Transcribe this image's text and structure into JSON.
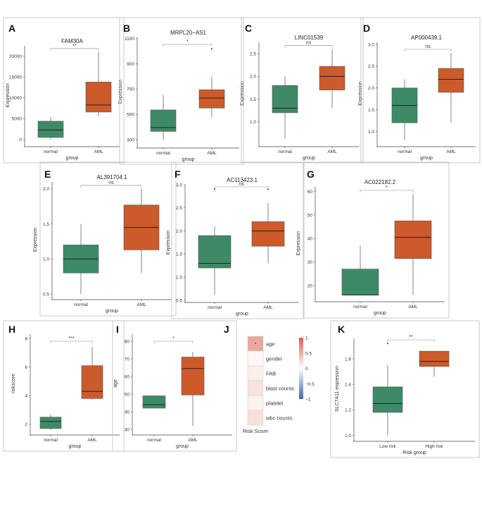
{
  "colors": {
    "normal": "#3f8a66",
    "aml": "#cc5a2a",
    "low_risk": "#3f8a66",
    "high_risk": "#cc5a2a"
  },
  "chart_data": [
    {
      "label": "A",
      "type": "box",
      "title": "FAM30A",
      "ylabel": "Expression",
      "xlabel": "group",
      "ylim": [
        -1200,
        22500
      ],
      "yticks": [
        0,
        5000,
        10000,
        15000,
        20000
      ],
      "tick_labels": [
        "0",
        "5000",
        "10000",
        "15000",
        "20000"
      ],
      "significance": "**",
      "categories": [
        "normal",
        "AML"
      ],
      "boxes": [
        {
          "name": "normal",
          "min": 0,
          "q1": 500,
          "median": 2300,
          "q3": 4400,
          "max": 5400,
          "outliers": []
        },
        {
          "name": "AML",
          "min": 5500,
          "q1": 6600,
          "median": 8300,
          "q3": 13800,
          "max": 21000,
          "outliers": []
        }
      ]
    },
    {
      "label": "B",
      "type": "box",
      "title": "MRPL20−AS1",
      "ylabel": "Expression",
      "xlabel": "group",
      "ylim": [
        250,
        1110
      ],
      "yticks": [
        300,
        500,
        700,
        900,
        1100
      ],
      "tick_labels": [
        "300",
        "500",
        "700",
        "900",
        "1100"
      ],
      "significance": "*",
      "categories": [
        "normal",
        "AML"
      ],
      "boxes": [
        {
          "name": "normal",
          "min": 300,
          "q1": 365,
          "median": 395,
          "q3": 535,
          "max": 655,
          "outliers": []
        },
        {
          "name": "AML",
          "min": 480,
          "q1": 550,
          "median": 630,
          "q3": 695,
          "max": 800,
          "outliers": [
            1020
          ]
        }
      ]
    },
    {
      "label": "C",
      "type": "box",
      "title": "LINC01539",
      "ylabel": "Expression",
      "xlabel": "group",
      "ylim": [
        0.5,
        2.75
      ],
      "yticks": [
        1.0,
        1.5,
        2.0,
        2.5
      ],
      "tick_labels": [
        "1.0",
        "1.5",
        "2.0",
        "2.5"
      ],
      "significance": "ns",
      "categories": [
        "normal",
        "AML"
      ],
      "boxes": [
        {
          "name": "normal",
          "min": 0.62,
          "q1": 1.2,
          "median": 1.3,
          "q3": 1.8,
          "max": 2.0,
          "outliers": []
        },
        {
          "name": "AML",
          "min": 1.3,
          "q1": 1.7,
          "median": 2.0,
          "q3": 2.22,
          "max": 2.6,
          "outliers": []
        }
      ]
    },
    {
      "label": "D",
      "type": "box",
      "title": "AP000439.1",
      "ylabel": "Expression",
      "xlabel": "group",
      "ylim": [
        0.7,
        3.05
      ],
      "yticks": [
        1.0,
        1.5,
        2.0,
        2.5,
        3.0
      ],
      "tick_labels": [
        "1.0",
        "1.5",
        "2.0",
        "2.5",
        "3.0"
      ],
      "significance": "ns",
      "categories": [
        "normal",
        "AML"
      ],
      "boxes": [
        {
          "name": "normal",
          "min": 0.8,
          "q1": 1.2,
          "median": 1.6,
          "q3": 2.0,
          "max": 2.2,
          "outliers": []
        },
        {
          "name": "AML",
          "min": 1.2,
          "q1": 1.9,
          "median": 2.2,
          "q3": 2.45,
          "max": 2.8,
          "outliers": []
        }
      ]
    },
    {
      "label": "E",
      "type": "box",
      "title": "AL391704.1",
      "ylabel": "Expression",
      "xlabel": "group",
      "ylim": [
        0.45,
        2.1
      ],
      "yticks": [
        0.5,
        1.0,
        1.5,
        2.0
      ],
      "tick_labels": [
        "0.5",
        "1.0",
        "1.5",
        "2.0"
      ],
      "significance": "ns",
      "categories": [
        "normal",
        "AML"
      ],
      "boxes": [
        {
          "name": "normal",
          "min": 0.5,
          "q1": 0.8,
          "median": 1.0,
          "q3": 1.2,
          "max": 1.5,
          "outliers": []
        },
        {
          "name": "AML",
          "min": 0.8,
          "q1": 1.13,
          "median": 1.45,
          "q3": 1.77,
          "max": 2.0,
          "outliers": []
        }
      ]
    },
    {
      "label": "F",
      "type": "box",
      "title": "AC113423.1",
      "ylabel": "Expression",
      "xlabel": "group",
      "ylim": [
        0.5,
        3.0
      ],
      "yticks": [
        0.5,
        1.0,
        1.5,
        2.0,
        2.5,
        3.0
      ],
      "tick_labels": [
        "0.5",
        "1.0",
        "1.5",
        "2.0",
        "2.5",
        "3.0"
      ],
      "significance": "ns",
      "categories": [
        "normal",
        "AML"
      ],
      "boxes": [
        {
          "name": "normal",
          "min": 0.62,
          "q1": 1.2,
          "median": 1.3,
          "q3": 1.9,
          "max": 2.1,
          "outliers": [
            2.9
          ]
        },
        {
          "name": "AML",
          "min": 1.3,
          "q1": 1.67,
          "median": 2.0,
          "q3": 2.2,
          "max": 2.6,
          "outliers": [
            2.9
          ]
        }
      ]
    },
    {
      "label": "G",
      "type": "box",
      "title": "AC022182.2",
      "ylabel": "Expression",
      "xlabel": "group",
      "ylim": [
        14,
        62
      ],
      "yticks": [
        20,
        30,
        40,
        50,
        60
      ],
      "tick_labels": [
        "20",
        "30",
        "40",
        "50",
        "60"
      ],
      "significance": "*",
      "categories": [
        "normal",
        "AML"
      ],
      "boxes": [
        {
          "name": "normal",
          "min": 16,
          "q1": 16,
          "median": 16,
          "q3": 27,
          "max": 37,
          "outliers": []
        },
        {
          "name": "AML",
          "min": 16,
          "q1": 31.5,
          "median": 40.5,
          "q3": 47.5,
          "max": 59,
          "outliers": []
        }
      ]
    },
    {
      "label": "H",
      "type": "box",
      "title": "",
      "ylabel": "riskscore",
      "xlabel": "group",
      "ylim": [
        1.4,
        8.3
      ],
      "yticks": [
        2,
        4,
        6,
        8
      ],
      "tick_labels": [
        "2",
        "4",
        "6",
        "8"
      ],
      "significance": "***",
      "categories": [
        "normal",
        "AML"
      ],
      "boxes": [
        {
          "name": "normal",
          "min": 1.6,
          "q1": 1.7,
          "median": 2.2,
          "q3": 2.5,
          "max": 2.7,
          "outliers": []
        },
        {
          "name": "AML",
          "min": 3.7,
          "q1": 3.8,
          "median": 4.3,
          "q3": 6.1,
          "max": 7.4,
          "outliers": []
        }
      ]
    },
    {
      "label": "I",
      "type": "box",
      "title": "",
      "ylabel": "age",
      "xlabel": "group",
      "ylim": [
        28,
        84
      ],
      "yticks": [
        30,
        40,
        50,
        60,
        70,
        80
      ],
      "tick_labels": [
        "30",
        "40",
        "50",
        "60",
        "70",
        "80"
      ],
      "significance": "*",
      "categories": [
        "normal",
        "AML"
      ],
      "boxes": [
        {
          "name": "normal",
          "min": 42,
          "q1": 42,
          "median": 44,
          "q3": 49,
          "max": 49,
          "outliers": []
        },
        {
          "name": "AML",
          "min": 32,
          "q1": 49.5,
          "median": 64.5,
          "q3": 71,
          "max": 74,
          "outliers": []
        }
      ]
    },
    {
      "label": "J",
      "type": "heatmap",
      "xlabel": "Risk Score",
      "rows": [
        "age",
        "gender",
        "FAB",
        "blast counts",
        "platelet",
        "wbc counts"
      ],
      "values": [
        0.55,
        0.05,
        0.1,
        0.18,
        0.08,
        0.2
      ],
      "annotations": [
        "*",
        "",
        "",
        "",
        "",
        ""
      ],
      "colorbar_ticks": [
        "1",
        "0.5",
        "0",
        "−0.5",
        "−1"
      ]
    },
    {
      "label": "K",
      "type": "box",
      "title": "",
      "ylabel": "SLC7A11 expression",
      "xlabel": "Risk group",
      "ylim": [
        0.97,
        1.76
      ],
      "yticks": [
        1.0,
        1.2,
        1.4,
        1.6
      ],
      "tick_labels": [
        "1.0",
        "1.2",
        "1.4",
        "1.6"
      ],
      "significance": "**",
      "categories": [
        "Low risk",
        "High risk"
      ],
      "boxes": [
        {
          "name": "Low risk",
          "min": 1.0,
          "q1": 1.18,
          "median": 1.25,
          "q3": 1.38,
          "max": 1.55,
          "outliers": [
            1.72
          ]
        },
        {
          "name": "High risk",
          "min": 1.46,
          "q1": 1.54,
          "median": 1.58,
          "q3": 1.66,
          "max": 1.66,
          "outliers": []
        }
      ]
    }
  ]
}
